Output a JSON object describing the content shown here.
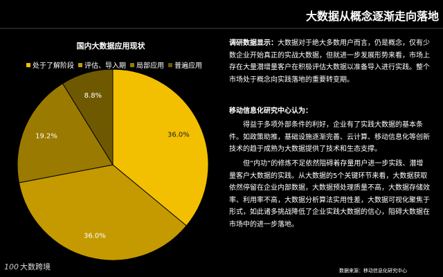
{
  "header": {
    "title": "大数据从概念逐渐走向落地"
  },
  "chart_data": {
    "type": "pie",
    "title": "国内大数据应用现状",
    "categories": [
      "处于了解阶段",
      "评估、导入期",
      "局部应用",
      "普遍应用"
    ],
    "values": [
      36.0,
      36.0,
      19.2,
      8.8
    ],
    "labels": [
      "36.0%",
      "36.0%",
      "19.2%",
      "8.8%"
    ],
    "colors": [
      "#F2C000",
      "#C49A00",
      "#9A7A00",
      "#6E5900"
    ],
    "legend_position": "top"
  },
  "text": {
    "para1_label": "调研数据显示：",
    "para1_body": "大数据对于绝大多数用户而言，仍是概念，仅有少数企业开始真正的实战大数据，但就进一步发展形势来看，市场上存在大量潜增量客户在积极评估大数据以准备导入进行实践。整个市场处于概念向实践落地的重要转变期。",
    "heading2": "移动信息化研究中心认为：",
    "para2": "得益于多项外部条件的利好，企业有了实践大数据的基本条件。如政策助推，基础设施逐渐完善、云计算、移动信息化等创新技术的趋于成熟为大数据提供了技术和生态支撑。",
    "para3": "但“内功”的修炼不足依然阻碍着存量用户进一步实践、潜增量客户大数据的实践。从大数据的5个关键环节来看，大数据获取依然停留在企业内部数据，大数据预处理质量不高，大数据存储效率、利用率不高，大数据分析算法实用性差，大数据可视化聚焦于形式，如此诸多挑战降低了企业实践大数据的信心，阻碍大数据在市场中的进一步落地。"
  },
  "footer": {
    "source": "数据来源：移动信息化研究中心",
    "logo_mark": "100",
    "logo_text": "大数跨境"
  }
}
